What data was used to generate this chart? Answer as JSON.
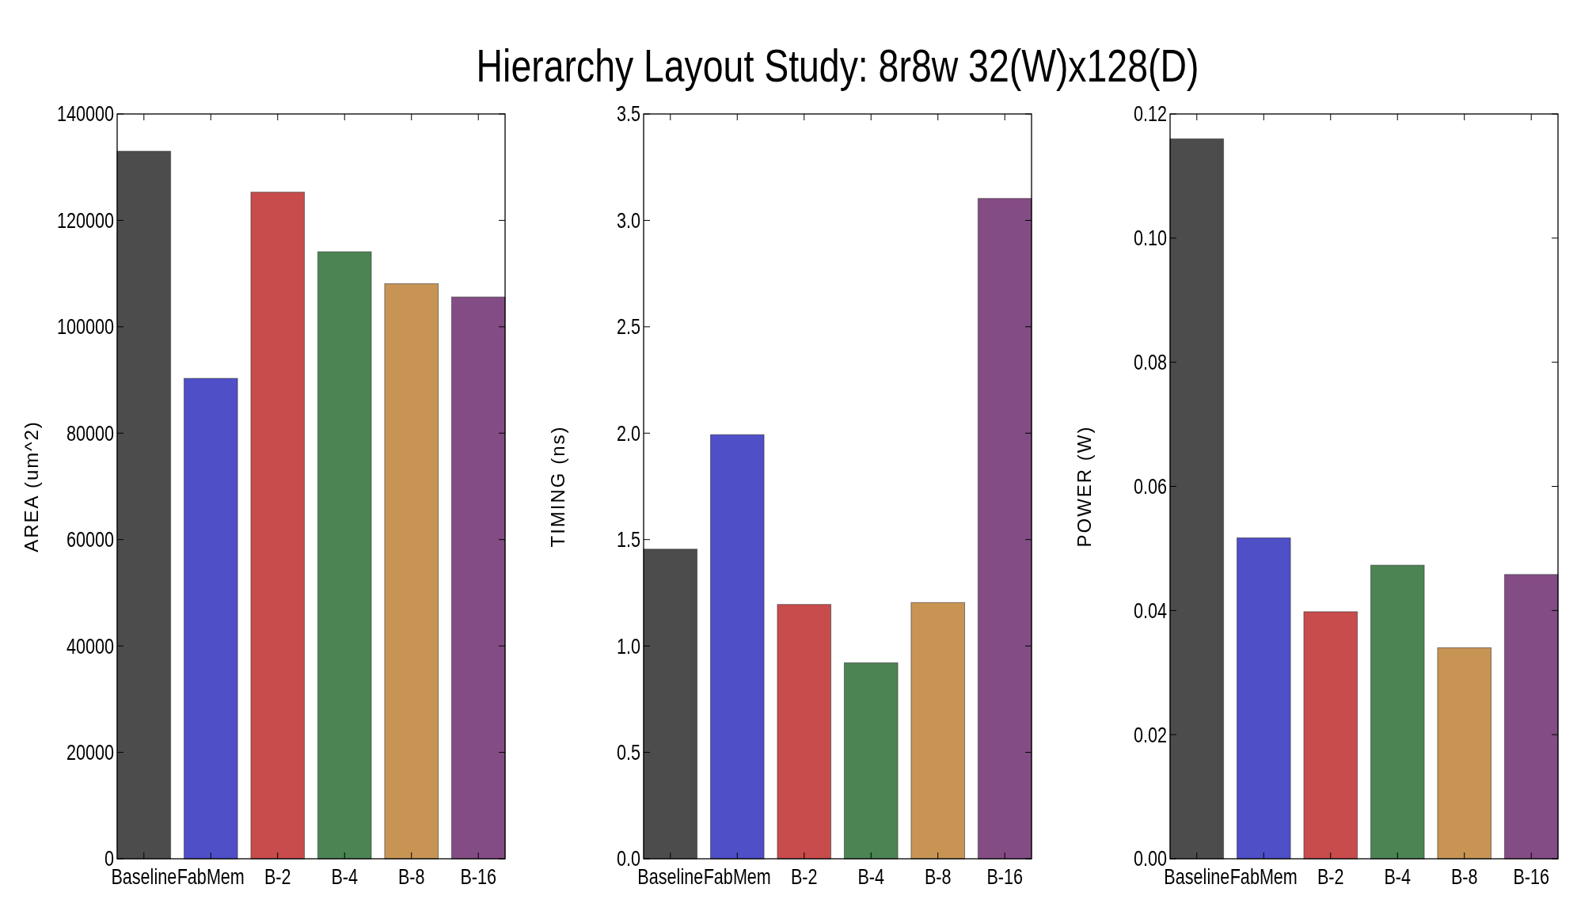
{
  "chart_data": [
    {
      "type": "bar",
      "ylabel": "AREA (um^2)",
      "categories": [
        "Baseline",
        "FabMem",
        "B-2",
        "B-4",
        "B-8",
        "B-16"
      ],
      "values": [
        133000,
        90300,
        125300,
        114100,
        108100,
        105600
      ],
      "colors": [
        "#4c4c4c",
        "#4f4fc8",
        "#c84c4c",
        "#4c8454",
        "#c89454",
        "#844c84"
      ],
      "ylim": [
        0,
        140000
      ],
      "yticks": [
        0,
        20000,
        40000,
        60000,
        80000,
        100000,
        120000,
        140000
      ],
      "grid": false
    },
    {
      "type": "bar",
      "title": "Hierarchy Layout Study: 8r8w 32(W)x128(D)",
      "ylabel": "TIMING (ns)",
      "categories": [
        "Baseline",
        "FabMem",
        "B-2",
        "B-4",
        "B-8",
        "B-16"
      ],
      "values": [
        1.455,
        1.993,
        1.195,
        0.921,
        1.204,
        3.103
      ],
      "colors": [
        "#4c4c4c",
        "#4f4fc8",
        "#c84c4c",
        "#4c8454",
        "#c89454",
        "#844c84"
      ],
      "ylim": [
        0,
        3.5
      ],
      "yticks": [
        {
          "value": 0,
          "label": "0.0"
        },
        0.5,
        {
          "value": 1,
          "label": "1.0"
        },
        1.5,
        {
          "value": 2,
          "label": "2.0"
        },
        2.5,
        {
          "value": 3,
          "label": "3.0"
        },
        3.5
      ],
      "grid": false
    },
    {
      "type": "bar",
      "ylabel": "POWER (W)",
      "categories": [
        "Baseline",
        "FabMem",
        "B-2",
        "B-4",
        "B-8",
        "B-16"
      ],
      "values": [
        0.116,
        0.0517,
        0.0398,
        0.0473,
        0.034,
        0.0458
      ],
      "colors": [
        "#4c4c4c",
        "#4f4fc8",
        "#c84c4c",
        "#4c8454",
        "#c89454",
        "#844c84"
      ],
      "ylim": [
        0,
        0.12
      ],
      "yticks": [
        {
          "value": 0,
          "label": "0.00"
        },
        0.02,
        0.04,
        0.06,
        0.08,
        {
          "value": 0.1,
          "label": "0.10"
        },
        0.12
      ],
      "grid": false
    }
  ]
}
